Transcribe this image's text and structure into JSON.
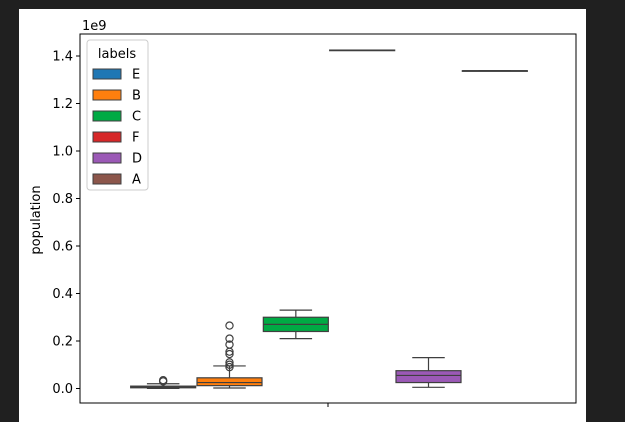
{
  "chart_data": {
    "type": "boxplot",
    "ylabel": "population",
    "y_offset_label": "1e9",
    "ylim": [
      -0.06,
      1.49
    ],
    "yticks": [
      0.0,
      0.2,
      0.4,
      0.6,
      0.8,
      1.0,
      1.2,
      1.4
    ],
    "ytick_labels": [
      "0.0",
      "0.2",
      "0.4",
      "0.6",
      "0.8",
      "1.0",
      "1.2",
      "1.4"
    ],
    "xticks": [
      ""
    ],
    "grid": false,
    "legend": {
      "title": "labels",
      "placement": "top-left"
    },
    "series": [
      {
        "name": "E",
        "color": "#1f77b4",
        "q1": 0.003,
        "median": 0.006,
        "q3": 0.01,
        "whisker_low": 0.0005,
        "whisker_high": 0.02,
        "outliers": [
          0.03,
          0.035
        ]
      },
      {
        "name": "B",
        "color": "#ff7f0e",
        "q1": 0.012,
        "median": 0.025,
        "q3": 0.045,
        "whisker_low": 0.002,
        "whisker_high": 0.095,
        "outliers": [
          0.09,
          0.1,
          0.11,
          0.145,
          0.155,
          0.185,
          0.21,
          0.265
        ]
      },
      {
        "name": "C",
        "color": "#00aa44",
        "q1": 0.24,
        "median": 0.27,
        "q3": 0.3,
        "whisker_low": 0.21,
        "whisker_high": 0.33,
        "outliers": []
      },
      {
        "name": "F",
        "color": "#d62728",
        "q1": 1.425,
        "median": 1.425,
        "q3": 1.425,
        "whisker_low": 1.425,
        "whisker_high": 1.425,
        "outliers": []
      },
      {
        "name": "D",
        "color": "#9b59b6",
        "q1": 0.025,
        "median": 0.055,
        "q3": 0.075,
        "whisker_low": 0.005,
        "whisker_high": 0.13,
        "outliers": []
      },
      {
        "name": "A",
        "color": "#8c564b",
        "q1": 1.338,
        "median": 1.338,
        "q3": 1.338,
        "whisker_low": 1.338,
        "whisker_high": 1.338,
        "outliers": []
      }
    ]
  }
}
